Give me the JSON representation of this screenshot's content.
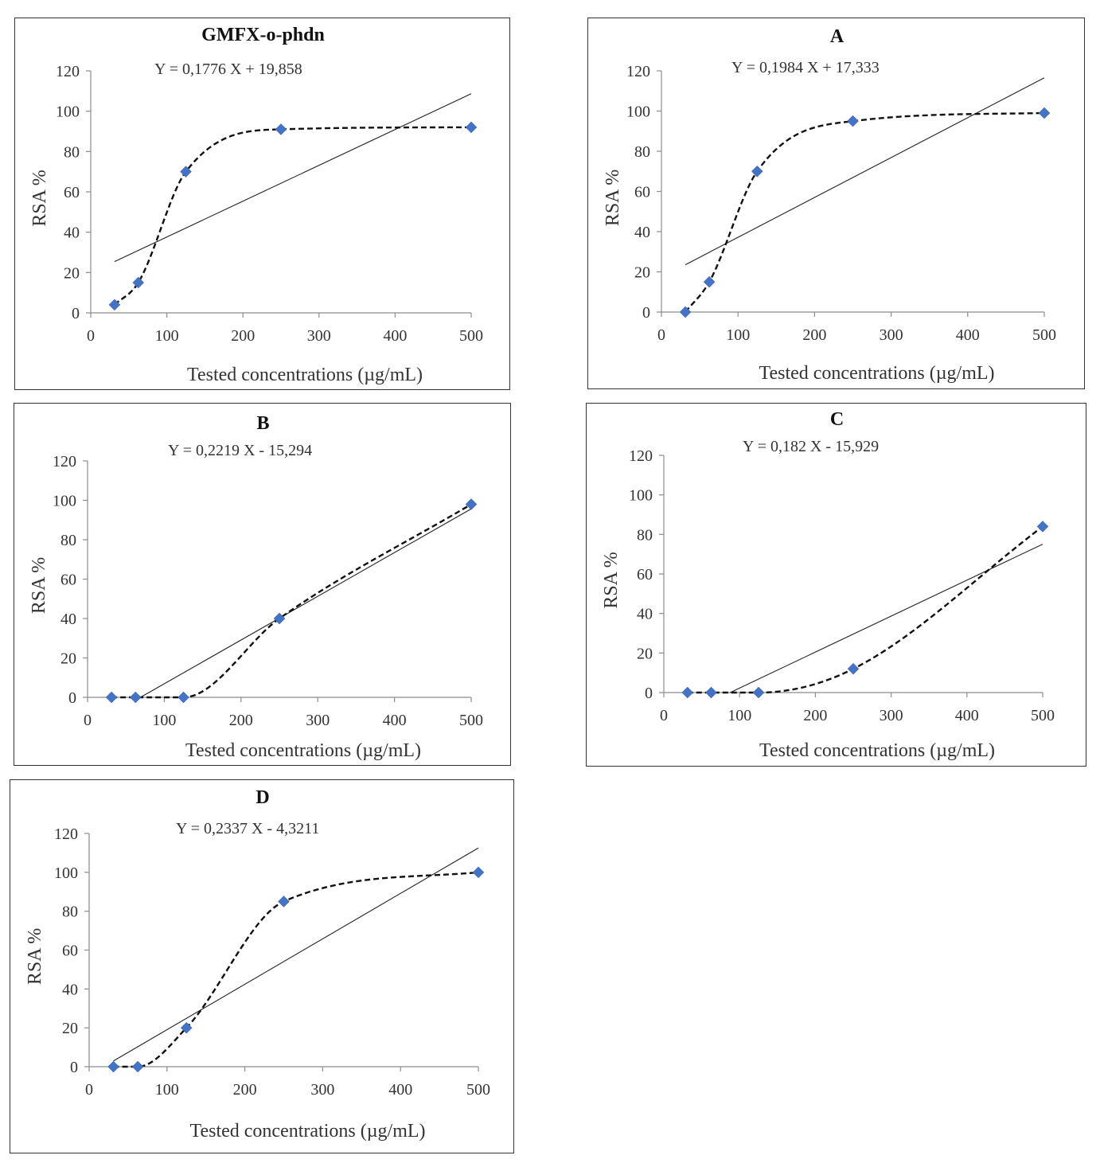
{
  "chart_data": [
    {
      "type": "scatter",
      "title": "GMFX-o-phdn",
      "equation": "Y = 0,1776 X + 19,858",
      "slope": 0.1776,
      "intercept": 19.858,
      "x": [
        31.25,
        62.5,
        125,
        250,
        500
      ],
      "y": [
        4,
        15,
        70,
        91,
        92
      ],
      "xlabel": "Tested concentrations (µg/mL)",
      "ylabel": "RSA %",
      "xlim": [
        0,
        500
      ],
      "ylim": [
        0,
        120
      ],
      "xticks": [
        "0",
        "100",
        "200",
        "300",
        "400",
        "500"
      ],
      "yticks": [
        "0",
        "20",
        "40",
        "60",
        "80",
        "100",
        "120"
      ]
    },
    {
      "type": "scatter",
      "title": "A",
      "equation": "Y = 0,1984 X + 17,333",
      "slope": 0.1984,
      "intercept": 17.333,
      "x": [
        31.25,
        62.5,
        125,
        250,
        500
      ],
      "y": [
        0,
        15,
        70,
        95,
        99
      ],
      "xlabel": "Tested concentrations (µg/mL)",
      "ylabel": "RSA %",
      "xlim": [
        0,
        500
      ],
      "ylim": [
        0,
        120
      ],
      "xticks": [
        "0",
        "100",
        "200",
        "300",
        "400",
        "500"
      ],
      "yticks": [
        "0",
        "20",
        "40",
        "60",
        "80",
        "100",
        "120"
      ]
    },
    {
      "type": "scatter",
      "title": "B",
      "equation": "Y = 0,2219 X - 15,294",
      "slope": 0.2219,
      "intercept": -15.294,
      "x": [
        31.25,
        62.5,
        125,
        250,
        500
      ],
      "y": [
        0,
        0,
        0,
        40,
        98
      ],
      "xlabel": "Tested concentrations (µg/mL)",
      "ylabel": "RSA %",
      "xlim": [
        0,
        500
      ],
      "ylim": [
        0,
        120
      ],
      "xticks": [
        "0",
        "100",
        "200",
        "300",
        "400",
        "500"
      ],
      "yticks": [
        "0",
        "20",
        "40",
        "60",
        "80",
        "100",
        "120"
      ]
    },
    {
      "type": "scatter",
      "title": "C",
      "equation": "Y = 0,182 X - 15,929",
      "slope": 0.182,
      "intercept": -15.929,
      "x": [
        31.25,
        62.5,
        125,
        250,
        500
      ],
      "y": [
        0,
        0,
        0,
        12,
        84
      ],
      "xlabel": "Tested concentrations (µg/mL)",
      "ylabel": "RSA %",
      "xlim": [
        0,
        500
      ],
      "ylim": [
        0,
        120
      ],
      "xticks": [
        "0",
        "100",
        "200",
        "300",
        "400",
        "500"
      ],
      "yticks": [
        "0",
        "20",
        "40",
        "60",
        "80",
        "100",
        "120"
      ]
    },
    {
      "type": "scatter",
      "title": "D",
      "equation": "Y = 0,2337 X - 4,3211",
      "slope": 0.2337,
      "intercept": -4.3211,
      "x": [
        31.25,
        62.5,
        125,
        250,
        500
      ],
      "y": [
        0,
        0,
        20,
        85,
        100
      ],
      "xlabel": "Tested concentrations (µg/mL)",
      "ylabel": "RSA %",
      "xlim": [
        0,
        500
      ],
      "ylim": [
        0,
        120
      ],
      "xticks": [
        "0",
        "100",
        "200",
        "300",
        "400",
        "500"
      ],
      "yticks": [
        "0",
        "20",
        "40",
        "60",
        "80",
        "100",
        "120"
      ]
    }
  ],
  "colors": {
    "marker": "#4472c4",
    "line": "#222222",
    "axis": "#8c8c8c"
  }
}
